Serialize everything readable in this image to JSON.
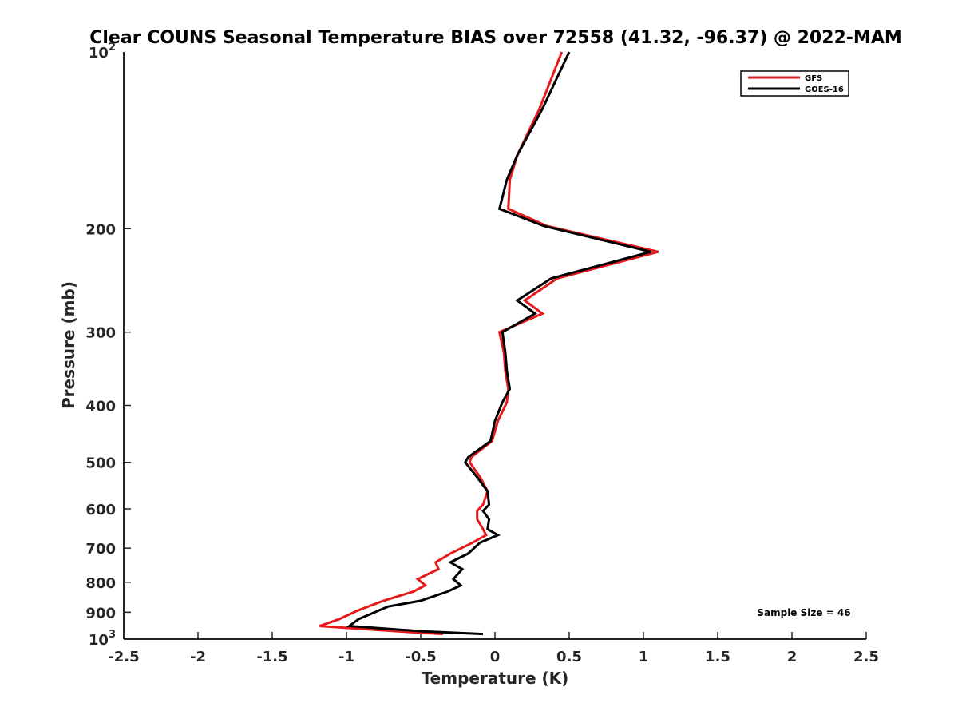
{
  "chart_data": {
    "type": "line",
    "title": "Clear COUNS Seasonal Temperature BIAS over 72558 (41.32, -96.37) @ 2022-MAM",
    "xlabel": "Temperature (K)",
    "ylabel": "Pressure (mb)",
    "xlim": [
      -2.5,
      2.5
    ],
    "ylim": [
      1000,
      100
    ],
    "yscale": "log",
    "y_reversed": true,
    "grid": false,
    "legend_position": "top-right",
    "x_ticks": [
      -2.5,
      -2,
      -1.5,
      -1,
      -0.5,
      0,
      0.5,
      1,
      1.5,
      2,
      2.5
    ],
    "x_tick_labels": [
      "-2.5",
      "-2",
      "-1.5",
      "-1",
      "-0.5",
      "0",
      "0.5",
      "1",
      "1.5",
      "2",
      "2.5"
    ],
    "y_ticks": [
      200,
      300,
      400,
      500,
      600,
      700,
      800,
      900
    ],
    "y_tick_labels": [
      "200",
      "300",
      "400",
      "500",
      "600",
      "700",
      "800",
      "900"
    ],
    "y_tick_power_labels": [
      {
        "value": 100,
        "base": "10",
        "exp": "2"
      },
      {
        "value": 1000,
        "base": "10",
        "exp": "3"
      }
    ],
    "annotation": "Sample Size = 46",
    "series": [
      {
        "name": "GFS",
        "color": "#e41a1c",
        "points": [
          [
            0.45,
            100
          ],
          [
            0.3,
            125
          ],
          [
            0.15,
            150
          ],
          [
            0.1,
            165
          ],
          [
            0.09,
            185
          ],
          [
            0.35,
            198
          ],
          [
            1.1,
            219
          ],
          [
            0.42,
            243
          ],
          [
            0.2,
            265
          ],
          [
            0.32,
            279
          ],
          [
            0.03,
            300
          ],
          [
            0.06,
            325
          ],
          [
            0.07,
            350
          ],
          [
            0.09,
            375
          ],
          [
            0.08,
            395
          ],
          [
            0.02,
            425
          ],
          [
            -0.02,
            460
          ],
          [
            -0.16,
            490
          ],
          [
            -0.17,
            500
          ],
          [
            -0.1,
            530
          ],
          [
            -0.05,
            560
          ],
          [
            -0.08,
            590
          ],
          [
            -0.12,
            605
          ],
          [
            -0.12,
            625
          ],
          [
            -0.08,
            650
          ],
          [
            -0.06,
            665
          ],
          [
            -0.15,
            685
          ],
          [
            -0.3,
            715
          ],
          [
            -0.4,
            740
          ],
          [
            -0.38,
            760
          ],
          [
            -0.52,
            790
          ],
          [
            -0.47,
            810
          ],
          [
            -0.55,
            830
          ],
          [
            -0.75,
            860
          ],
          [
            -0.93,
            895
          ],
          [
            -1.05,
            925
          ],
          [
            -1.18,
            950
          ],
          [
            -0.65,
            970
          ],
          [
            -0.35,
            980
          ]
        ]
      },
      {
        "name": "GOES-16",
        "color": "#000000",
        "points": [
          [
            0.5,
            100
          ],
          [
            0.32,
            125
          ],
          [
            0.15,
            150
          ],
          [
            0.08,
            165
          ],
          [
            0.03,
            185
          ],
          [
            0.33,
            198
          ],
          [
            1.05,
            219
          ],
          [
            0.38,
            243
          ],
          [
            0.15,
            265
          ],
          [
            0.27,
            279
          ],
          [
            0.05,
            300
          ],
          [
            0.07,
            325
          ],
          [
            0.08,
            350
          ],
          [
            0.1,
            375
          ],
          [
            0.05,
            395
          ],
          [
            0.0,
            425
          ],
          [
            -0.03,
            460
          ],
          [
            -0.18,
            490
          ],
          [
            -0.2,
            500
          ],
          [
            -0.12,
            530
          ],
          [
            -0.05,
            560
          ],
          [
            -0.04,
            590
          ],
          [
            -0.08,
            605
          ],
          [
            -0.04,
            625
          ],
          [
            -0.05,
            650
          ],
          [
            0.02,
            665
          ],
          [
            -0.1,
            685
          ],
          [
            -0.18,
            715
          ],
          [
            -0.3,
            740
          ],
          [
            -0.22,
            760
          ],
          [
            -0.28,
            790
          ],
          [
            -0.23,
            810
          ],
          [
            -0.32,
            830
          ],
          [
            -0.5,
            860
          ],
          [
            -0.72,
            880
          ],
          [
            -0.92,
            925
          ],
          [
            -0.98,
            950
          ],
          [
            -0.48,
            970
          ],
          [
            -0.08,
            980
          ]
        ]
      }
    ]
  }
}
